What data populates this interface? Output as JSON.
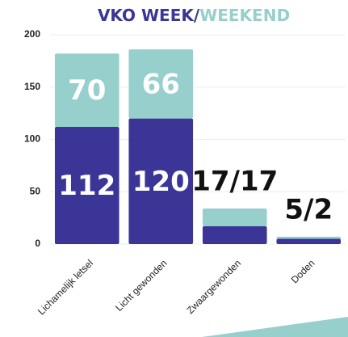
{
  "chart_data": {
    "type": "stacked_bar",
    "title": [
      "VKO WEEK/",
      "WEEKEND"
    ],
    "title_colors": [
      "#3a3596",
      "#96cfcc"
    ],
    "categories": [
      "Lichamelijk letsel",
      "Licht gewonden",
      "Zwaargewonden",
      "Doden"
    ],
    "series": [
      {
        "name": null,
        "color": "#3a3596",
        "values": [
          112,
          120,
          17,
          5
        ],
        "value_labels": [
          "112",
          "120",
          null,
          null
        ]
      },
      {
        "name": null,
        "color": "#96cfcc",
        "values": [
          70,
          66,
          17,
          2
        ],
        "value_labels": [
          "70",
          "66",
          null,
          null
        ]
      }
    ],
    "total_labels": [
      null,
      null,
      "17/17",
      "5/2"
    ],
    "ylim": [
      0,
      200
    ],
    "yticks": [
      0,
      50,
      100,
      150,
      200
    ],
    "grid": true
  }
}
